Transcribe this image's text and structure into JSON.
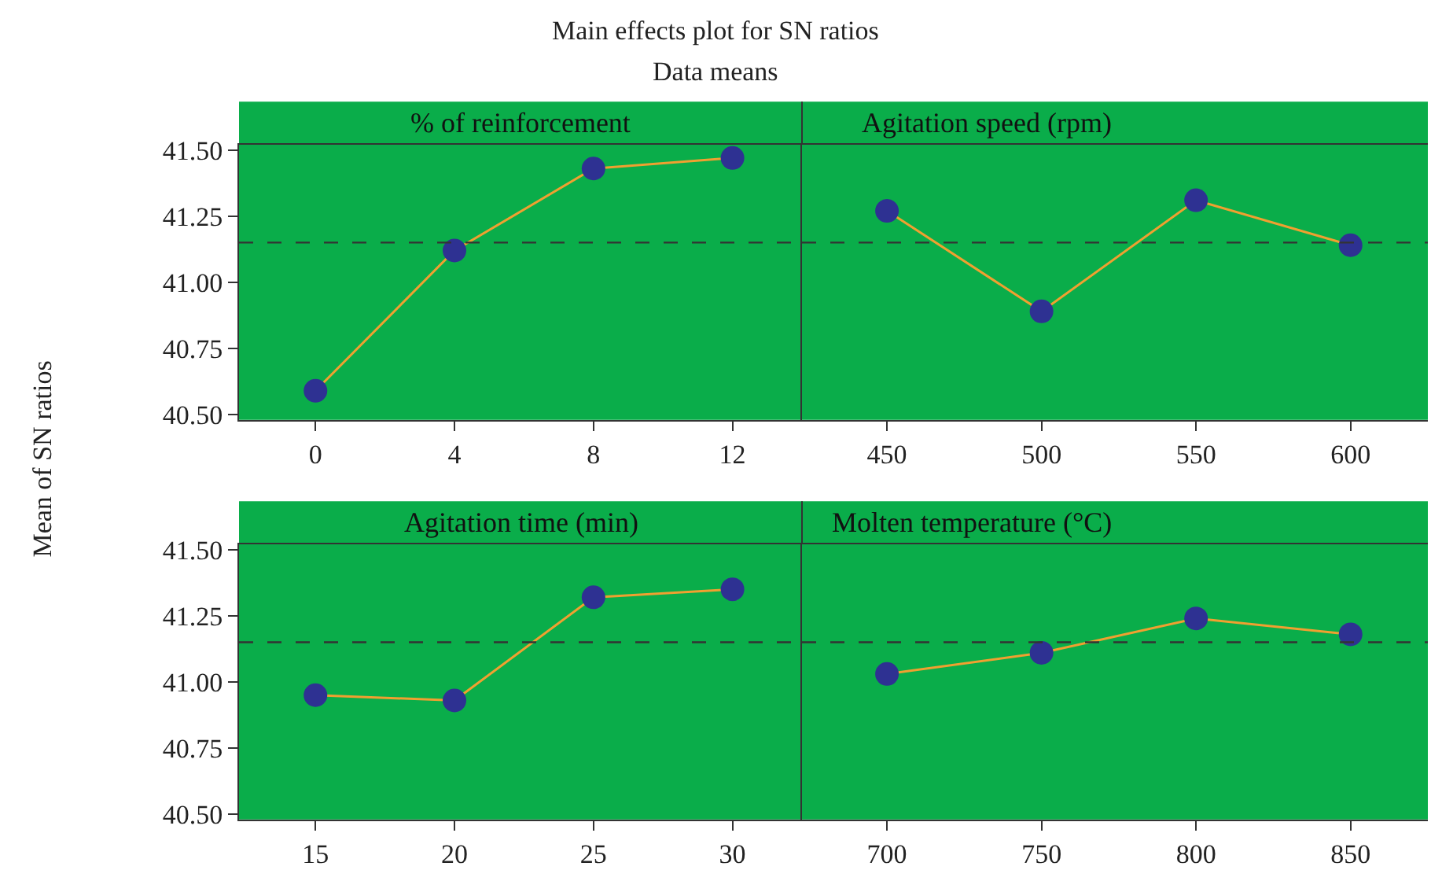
{
  "chart_data": [
    {
      "type": "line",
      "title": "Main effects plot for SN ratios",
      "subtitle": "Data means",
      "ylabel": "Mean of SN ratios",
      "xlabel": "% of reinforcement",
      "categories": [
        "0",
        "4",
        "8",
        "12"
      ],
      "series": [
        {
          "color": "#f0a030",
          "colors": [
            "#2e3192",
            "#2e3192",
            "#2e3192",
            "#2e3192"
          ],
          "values": [
            40.59,
            41.12,
            41.43,
            41.47
          ]
        }
      ],
      "ylim": [
        40.48,
        41.52
      ],
      "yticks": [
        {
          "value": 40.5,
          "label": "40.50"
        },
        {
          "value": 40.75,
          "label": "40.75"
        },
        {
          "value": 41.0,
          "label": "41.00"
        },
        {
          "value": 41.25,
          "label": "41.25"
        },
        {
          "value": 41.5,
          "label": "41.50"
        }
      ],
      "ref_lines": [
        {
          "axis": "y",
          "value": 41.15,
          "line_style": "dashed",
          "color": "#333333"
        }
      ],
      "marker": "circle",
      "line_style": "solid",
      "grid": false
    },
    {
      "type": "line",
      "xlabel": "Agitation speed (rpm)",
      "categories": [
        "450",
        "500",
        "550",
        "600"
      ],
      "series": [
        {
          "color": "#f0a030",
          "colors": [
            "#2e3192",
            "#2e3192",
            "#2e3192",
            "#2e3192"
          ],
          "values": [
            41.27,
            40.89,
            41.31,
            41.14
          ]
        }
      ],
      "ylim": [
        40.48,
        41.52
      ],
      "ref_lines": [
        {
          "axis": "y",
          "value": 41.15,
          "line_style": "dashed",
          "color": "#333333"
        }
      ],
      "marker": "circle",
      "line_style": "solid",
      "grid": false,
      "tick_labels": "x"
    },
    {
      "type": "line",
      "xlabel": "Agitation time (min)",
      "categories": [
        "15",
        "20",
        "25",
        "30"
      ],
      "series": [
        {
          "color": "#f0a030",
          "colors": [
            "#2e3192",
            "#2e3192",
            "#2e3192",
            "#2e3192"
          ],
          "values": [
            40.95,
            40.93,
            41.32,
            41.35
          ]
        }
      ],
      "ylim": [
        40.48,
        41.52
      ],
      "yticks": [
        {
          "value": 40.5,
          "label": "40.50"
        },
        {
          "value": 40.75,
          "label": "40.75"
        },
        {
          "value": 41.0,
          "label": "41.00"
        },
        {
          "value": 41.25,
          "label": "41.25"
        },
        {
          "value": 41.5,
          "label": "41.50"
        }
      ],
      "ref_lines": [
        {
          "axis": "y",
          "value": 41.15,
          "line_style": "dashed",
          "color": "#333333"
        }
      ],
      "marker": "circle",
      "line_style": "solid",
      "grid": false
    },
    {
      "type": "line",
      "xlabel": "Molten temperature (°C)",
      "categories": [
        "700",
        "750",
        "800",
        "850"
      ],
      "series": [
        {
          "color": "#f0a030",
          "colors": [
            "#2e3192",
            "#2e3192",
            "#2e3192",
            "#2e3192"
          ],
          "values": [
            41.03,
            41.11,
            41.24,
            41.18
          ]
        }
      ],
      "ylim": [
        40.48,
        41.52
      ],
      "ref_lines": [
        {
          "axis": "y",
          "value": 41.15,
          "line_style": "dashed",
          "color": "#333333"
        }
      ],
      "marker": "circle",
      "line_style": "solid",
      "grid": false,
      "tick_labels": "x"
    }
  ]
}
